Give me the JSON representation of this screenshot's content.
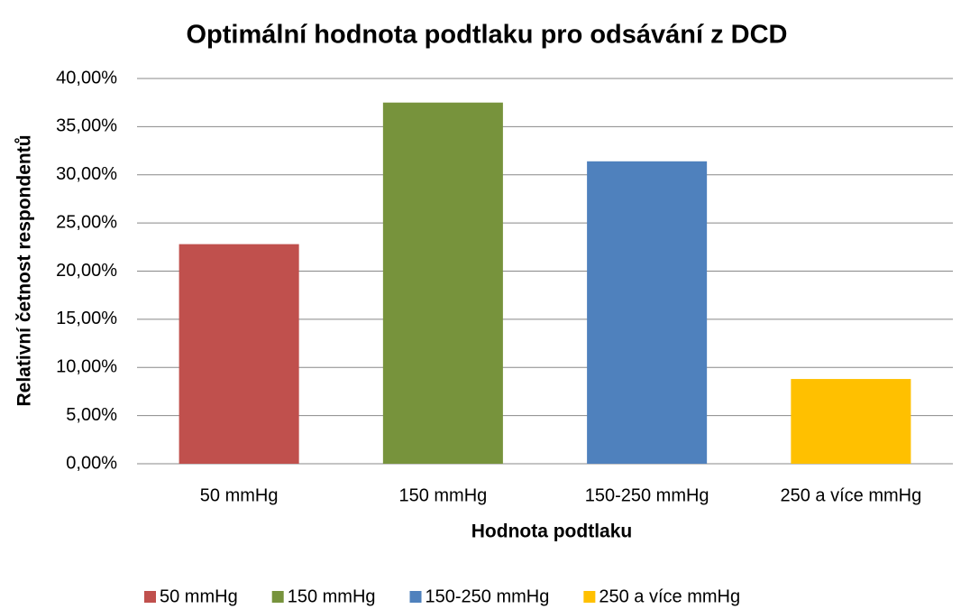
{
  "chart_data": {
    "type": "bar",
    "title": "Optimální hodnota podtlaku pro odsávání z DCD",
    "x_label": "Hodnota podtlaku",
    "y_label": "Relativní četnost respondentů",
    "categories": [
      "50 mmHg",
      "150 mmHg",
      "150-250 mmHg",
      "250 a více mmHg"
    ],
    "values": [
      22.8,
      37.5,
      31.4,
      8.8
    ],
    "colors": [
      "#c0504d",
      "#77933c",
      "#4f81bd",
      "#ffc000"
    ],
    "ylim": [
      0,
      40
    ],
    "yticks": [
      {
        "value": 0,
        "label": "0,00%"
      },
      {
        "value": 5,
        "label": "5,00%"
      },
      {
        "value": 10,
        "label": "10,00%"
      },
      {
        "value": 15,
        "label": "15,00%"
      },
      {
        "value": 20,
        "label": "20,00%"
      },
      {
        "value": 25,
        "label": "25,00%"
      },
      {
        "value": 30,
        "label": "30,00%"
      },
      {
        "value": 35,
        "label": "35,00%"
      },
      {
        "value": 40,
        "label": "40,00%"
      }
    ],
    "grid": true,
    "legend": "bottom"
  }
}
